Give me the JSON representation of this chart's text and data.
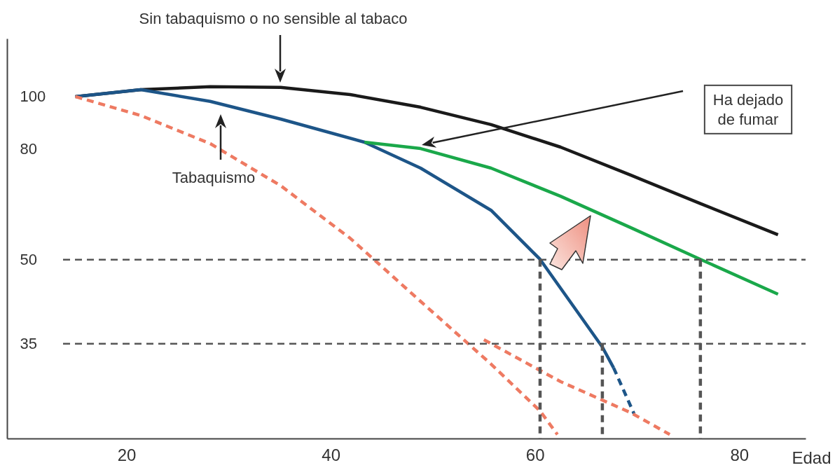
{
  "chart_data": {
    "type": "line",
    "xlabel": "Edad",
    "log": "y",
    "grid": false,
    "xlim": [
      8.3,
      86.5
    ],
    "xticks": [
      20,
      40,
      60,
      80
    ],
    "ylim": [
      23.4,
      128
    ],
    "yticks": [
      35,
      50,
      80,
      100
    ],
    "series": [
      {
        "color": "#1a1a1a",
        "line_style": "solid",
        "x": [
          15.0,
          21.4,
          28.2,
          35.1,
          41.9,
          48.8,
          55.7,
          62.5,
          69.4,
          76.2,
          83.8
        ],
        "values": [
          100,
          103,
          104.3,
          104,
          100.9,
          95.6,
          88.8,
          80.7,
          71.6,
          63.5,
          55.6
        ]
      },
      {
        "color": "#1d5588",
        "line_style": "solid",
        "x": [
          15.0,
          21.4,
          28.2,
          35.1,
          43.3,
          48.8,
          55.7,
          60.5,
          63.9,
          66.6,
          67.7
        ],
        "values": [
          100,
          103,
          98,
          90.9,
          82.4,
          73.8,
          61.7,
          50.1,
          40.7,
          34.5,
          31.6
        ]
      },
      {
        "color": "#1d5588",
        "line_style": "dashed",
        "x": [
          67.7,
          69.7
        ],
        "values": [
          31.6,
          26.0
        ]
      },
      {
        "color": "#1aa84a",
        "line_style": "solid",
        "x": [
          43.3,
          48.8,
          55.7,
          62.5,
          69.4,
          76.2,
          83.8
        ],
        "values": [
          82.4,
          80.2,
          73.8,
          65.5,
          57.3,
          50.1,
          43.2
        ]
      },
      {
        "color": "#ee7a62",
        "line_style": "dashed",
        "x": [
          15.0,
          21.4,
          28.2,
          35.1,
          41.9,
          48.8,
          55.7,
          60.5,
          62.2
        ],
        "values": [
          100,
          92.3,
          81.9,
          68.5,
          54.8,
          41.9,
          32.1,
          26.3,
          23.8
        ]
      },
      {
        "color": "#ee7a62",
        "line_style": "dashed",
        "x": [
          55.0,
          62.5,
          69.4,
          73.2
        ],
        "values": [
          35.6,
          29.8,
          26.1,
          23.8
        ]
      },
      {
        "color": "#555555",
        "line_style": "dashed",
        "x": [
          60.5,
          60.5
        ],
        "values": [
          50,
          23.4
        ]
      },
      {
        "color": "#555555",
        "line_style": "dashed",
        "x": [
          66.6,
          66.6
        ],
        "values": [
          35,
          23.4
        ]
      },
      {
        "color": "#555555",
        "line_style": "dashed",
        "x": [
          76.2,
          76.2
        ],
        "values": [
          50,
          23.4
        ]
      }
    ],
    "ref_lines": [
      {
        "axis": "y",
        "value": 50,
        "color": "#555555",
        "line_style": "dashed"
      },
      {
        "axis": "y",
        "value": 35,
        "color": "#555555",
        "line_style": "dashed"
      }
    ],
    "annotations": [
      "Sin tabaquismo o no sensible al tabaco",
      "Tabaquismo",
      "Ha dejado de fumar"
    ]
  }
}
